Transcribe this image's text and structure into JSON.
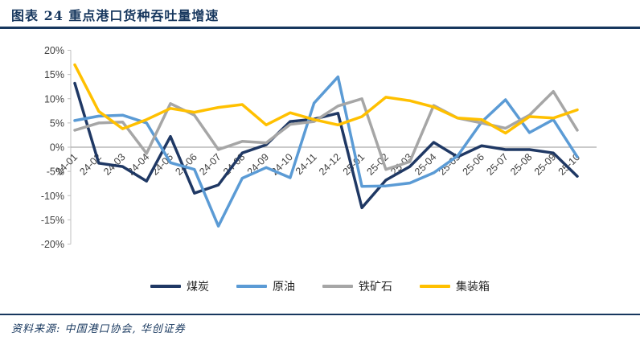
{
  "header": {
    "title": "图表 24  重点港口货种吞吐量增速"
  },
  "footer": {
    "source": "资料来源: 中国港口协会, 华创证券"
  },
  "colors": {
    "accent_navy": "#17375E",
    "axis_gray": "#BFBFBF",
    "zero_line_gray": "#ABABAB",
    "tick_text": "#404040"
  },
  "chart_data": {
    "type": "line",
    "title": "重点港口货种吞吐量增速",
    "categories": [
      "24-01",
      "24-02",
      "24-03",
      "24-04",
      "24-05",
      "24-06",
      "24-07",
      "24-08",
      "24-09",
      "24-10",
      "24-11",
      "24-12",
      "25-01",
      "25-02",
      "25-03",
      "25-04",
      "25-05",
      "25-06",
      "25-07",
      "25-08",
      "25-09",
      "25-10"
    ],
    "series": [
      {
        "name": "煤炭",
        "color": "#1F3864",
        "values": [
          13.2,
          -3.3,
          -4.0,
          -7.0,
          2.2,
          -9.5,
          -7.8,
          -1.2,
          0.5,
          5.3,
          5.8,
          7.0,
          -12.5,
          -6.8,
          -4.0,
          1.0,
          -2.0,
          0.3,
          -0.5,
          -0.5,
          -1.2,
          -6.0
        ]
      },
      {
        "name": "原油",
        "color": "#5B9BD5",
        "values": [
          5.5,
          6.4,
          6.6,
          5.0,
          -3.2,
          -4.6,
          -16.3,
          -6.4,
          -4.2,
          -6.3,
          9.1,
          14.5,
          -8.1,
          -8.0,
          -7.4,
          -5.3,
          -1.8,
          5.2,
          9.8,
          3.0,
          5.7,
          -2.0
        ]
      },
      {
        "name": "铁矿石",
        "color": "#A6A6A6",
        "values": [
          3.5,
          5.0,
          5.2,
          -1.3,
          9.0,
          6.6,
          -0.5,
          1.2,
          0.9,
          4.7,
          5.3,
          8.5,
          10.0,
          -4.6,
          -3.0,
          8.6,
          6.0,
          5.0,
          3.9,
          6.6,
          11.5,
          3.5
        ]
      },
      {
        "name": "集装箱",
        "color": "#FFC000",
        "values": [
          17.0,
          7.4,
          3.8,
          5.7,
          8.0,
          7.2,
          8.2,
          8.8,
          4.6,
          7.1,
          5.7,
          4.6,
          6.3,
          10.3,
          9.6,
          8.3,
          6.0,
          5.7,
          2.9,
          6.3,
          6.0,
          7.7
        ]
      }
    ],
    "xlabel": "",
    "ylabel": "",
    "ylim": [
      -20,
      20
    ],
    "ytick_step": 5,
    "ytick_labels": [
      "20%",
      "15%",
      "10%",
      "5%",
      "0%",
      "-5%",
      "-10%",
      "-15%",
      "-20%"
    ],
    "grid": "zero-line-only",
    "legend_position": "bottom"
  }
}
